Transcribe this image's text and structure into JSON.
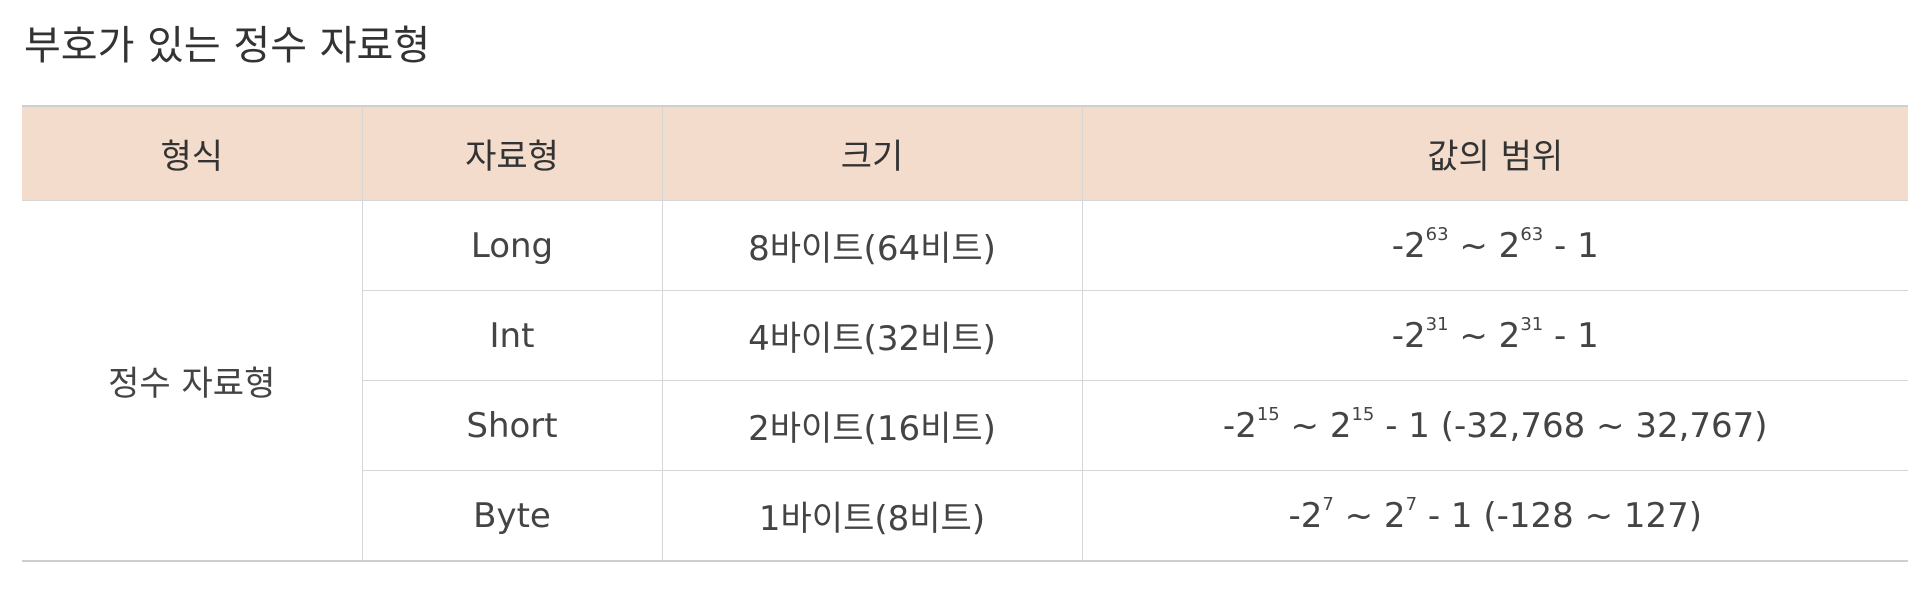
{
  "title": "부호가 있는 정수 자료형",
  "table": {
    "headers": [
      "형식",
      "자료형",
      "크기",
      "값의 범위"
    ],
    "format_label": "정수 자료형",
    "rows": [
      {
        "type": "Long",
        "size": "8바이트(64비트)",
        "range": {
          "neg_prefix": "-2",
          "neg_exp": "63",
          "sep": " ~ ",
          "pos_base": "2",
          "pos_exp": "63",
          "suffix": " - 1"
        }
      },
      {
        "type": "Int",
        "size": "4바이트(32비트)",
        "range": {
          "neg_prefix": "-2",
          "neg_exp": "31",
          "sep": " ~ ",
          "pos_base": "2",
          "pos_exp": "31",
          "suffix": " - 1"
        }
      },
      {
        "type": "Short",
        "size": "2바이트(16비트)",
        "range": {
          "neg_prefix": "-2",
          "neg_exp": "15",
          "sep": " ~ ",
          "pos_base": "2",
          "pos_exp": "15",
          "suffix": " - 1 (-32,768 ~ 32,767)"
        }
      },
      {
        "type": "Byte",
        "size": "1바이트(8비트)",
        "range": {
          "neg_prefix": "-2",
          "neg_exp": "7",
          "sep": " ~ ",
          "pos_base": "2",
          "pos_exp": "7",
          "suffix": " - 1 (-128 ~ 127)"
        }
      }
    ]
  },
  "colors": {
    "header_bg": "#f3dccb",
    "text": "#333333",
    "border": "#d6d6d6"
  }
}
